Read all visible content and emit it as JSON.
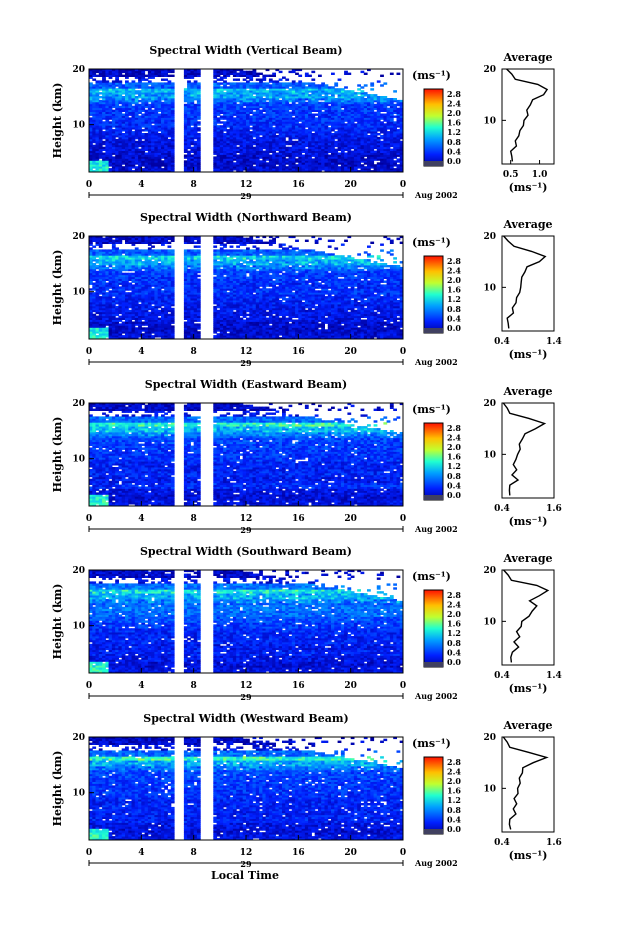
{
  "figure": {
    "xlabel": "Local Time",
    "date_label": "Aug 2002",
    "day_label": "29",
    "ylabel": "Height (km)",
    "colorbar_label": "(ms⁻¹)",
    "avg_title": "Average",
    "avg_xlabel": "(ms⁻¹)"
  },
  "chart_data": [
    {
      "type": "heatmap",
      "title": "Spectral Width (Vertical Beam)",
      "x_ticks": [
        "0",
        "4",
        "8",
        "12",
        "16",
        "20",
        "0"
      ],
      "y_ticks": [
        "20",
        "10"
      ],
      "xlim": [
        0,
        24
      ],
      "ylim": [
        1.5,
        20
      ],
      "colorbar_ticks": [
        "2.8",
        "2.4",
        "2.0",
        "1.6",
        "1.2",
        "0.8",
        "0.4",
        "0.0"
      ],
      "colorbar_range": [
        0.0,
        3.0
      ],
      "gaps": [
        [
          6.5,
          7.1
        ],
        [
          8.5,
          9.4
        ]
      ],
      "profile": {
        "type": "line",
        "title": "Average",
        "x_ticks": [
          "0.5",
          "1.0"
        ],
        "xlim": [
          0.35,
          1.25
        ],
        "y_ticks": [
          "20",
          "10"
        ],
        "heights": [
          2,
          3,
          4,
          5,
          6,
          7,
          8,
          9,
          10,
          11,
          12,
          13,
          14,
          15,
          16,
          17,
          18,
          19,
          20
        ],
        "values": [
          0.55,
          0.5,
          0.52,
          0.58,
          0.6,
          0.62,
          0.68,
          0.7,
          0.75,
          0.78,
          0.8,
          0.82,
          0.9,
          1.05,
          1.15,
          0.95,
          0.6,
          0.5,
          0.45
        ]
      }
    },
    {
      "type": "heatmap",
      "title": "Spectral Width (Northward Beam)",
      "x_ticks": [
        "0",
        "4",
        "8",
        "12",
        "16",
        "20",
        "0"
      ],
      "y_ticks": [
        "20",
        "10"
      ],
      "xlim": [
        0,
        24
      ],
      "ylim": [
        1.5,
        20
      ],
      "colorbar_ticks": [
        "2.8",
        "2.4",
        "2.0",
        "1.6",
        "1.2",
        "0.8",
        "0.4",
        "0.0"
      ],
      "colorbar_range": [
        0.0,
        3.0
      ],
      "gaps": [
        [
          6.5,
          7.1
        ],
        [
          8.5,
          9.4
        ]
      ],
      "profile": {
        "type": "line",
        "title": "Average",
        "x_ticks": [
          "0.4",
          "1.4"
        ],
        "xlim": [
          0.4,
          1.4
        ],
        "y_ticks": [
          "20",
          "10"
        ],
        "heights": [
          2,
          3,
          4,
          5,
          6,
          7,
          8,
          9,
          10,
          11,
          12,
          13,
          14,
          15,
          16,
          17,
          18,
          19,
          20
        ],
        "values": [
          0.55,
          0.5,
          0.52,
          0.6,
          0.62,
          0.65,
          0.7,
          0.72,
          0.78,
          0.75,
          0.8,
          0.82,
          0.9,
          1.1,
          1.25,
          0.95,
          0.65,
          0.5,
          0.45
        ]
      }
    },
    {
      "type": "heatmap",
      "title": "Spectral Width (Eastward Beam)",
      "x_ticks": [
        "0",
        "4",
        "8",
        "12",
        "16",
        "20",
        "0"
      ],
      "y_ticks": [
        "20",
        "10"
      ],
      "xlim": [
        0,
        24
      ],
      "ylim": [
        1.5,
        20
      ],
      "colorbar_ticks": [
        "2.8",
        "2.4",
        "2.0",
        "1.6",
        "1.2",
        "0.8",
        "0.4",
        "0.0"
      ],
      "colorbar_range": [
        0.0,
        3.0
      ],
      "gaps": [
        [
          6.5,
          7.1
        ],
        [
          8.5,
          9.4
        ]
      ],
      "profile": {
        "type": "line",
        "title": "Average",
        "x_ticks": [
          "0.4",
          "1.6"
        ],
        "xlim": [
          0.4,
          1.6
        ],
        "y_ticks": [
          "20",
          "10"
        ],
        "heights": [
          2,
          3,
          4,
          5,
          6,
          7,
          8,
          9,
          10,
          11,
          12,
          13,
          14,
          15,
          16,
          17,
          18,
          19,
          20
        ],
        "values": [
          0.6,
          0.55,
          0.6,
          0.75,
          0.65,
          0.72,
          0.68,
          0.7,
          0.78,
          0.8,
          0.82,
          0.85,
          0.95,
          1.15,
          1.4,
          1.0,
          0.6,
          0.5,
          0.45
        ]
      }
    },
    {
      "type": "heatmap",
      "title": "Spectral Width (Southward Beam)",
      "x_ticks": [
        "0",
        "4",
        "8",
        "12",
        "16",
        "20",
        "0"
      ],
      "y_ticks": [
        "20",
        "10"
      ],
      "xlim": [
        0,
        24
      ],
      "ylim": [
        1.5,
        20
      ],
      "colorbar_ticks": [
        "2.8",
        "2.4",
        "2.0",
        "1.6",
        "1.2",
        "0.8",
        "0.4",
        "0.0"
      ],
      "colorbar_range": [
        0.0,
        3.0
      ],
      "gaps": [
        [
          6.5,
          7.1
        ],
        [
          8.5,
          9.4
        ]
      ],
      "profile": {
        "type": "line",
        "title": "Average",
        "x_ticks": [
          "0.4",
          "1.4"
        ],
        "xlim": [
          0.4,
          1.4
        ],
        "y_ticks": [
          "20",
          "10"
        ],
        "heights": [
          2,
          3,
          4,
          5,
          6,
          7,
          8,
          9,
          10,
          11,
          12,
          13,
          14,
          15,
          16,
          17,
          18,
          19,
          20
        ],
        "values": [
          0.6,
          0.55,
          0.62,
          0.7,
          0.65,
          0.72,
          0.7,
          0.75,
          0.8,
          0.9,
          1.0,
          1.05,
          0.95,
          1.1,
          1.3,
          1.05,
          0.6,
          0.5,
          0.45
        ]
      }
    },
    {
      "type": "heatmap",
      "title": "Spectral Width (Westward Beam)",
      "x_ticks": [
        "0",
        "4",
        "8",
        "12",
        "16",
        "20",
        "0"
      ],
      "y_ticks": [
        "20",
        "10"
      ],
      "xlim": [
        0,
        24
      ],
      "ylim": [
        1.5,
        20
      ],
      "colorbar_ticks": [
        "2.8",
        "2.4",
        "2.0",
        "1.6",
        "1.2",
        "0.8",
        "0.4",
        "0.0"
      ],
      "colorbar_range": [
        0.0,
        3.0
      ],
      "gaps": [
        [
          6.5,
          7.1
        ],
        [
          8.5,
          9.4
        ]
      ],
      "profile": {
        "type": "line",
        "title": "Average",
        "x_ticks": [
          "0.4",
          "1.6"
        ],
        "xlim": [
          0.4,
          1.6
        ],
        "y_ticks": [
          "20",
          "10"
        ],
        "heights": [
          2,
          3,
          4,
          5,
          6,
          7,
          8,
          9,
          10,
          11,
          12,
          13,
          14,
          15,
          16,
          17,
          18,
          19,
          20
        ],
        "values": [
          0.62,
          0.55,
          0.6,
          0.7,
          0.68,
          0.72,
          0.7,
          0.75,
          0.78,
          0.8,
          0.82,
          0.85,
          0.9,
          1.1,
          1.45,
          1.0,
          0.6,
          0.5,
          0.45
        ]
      }
    }
  ]
}
